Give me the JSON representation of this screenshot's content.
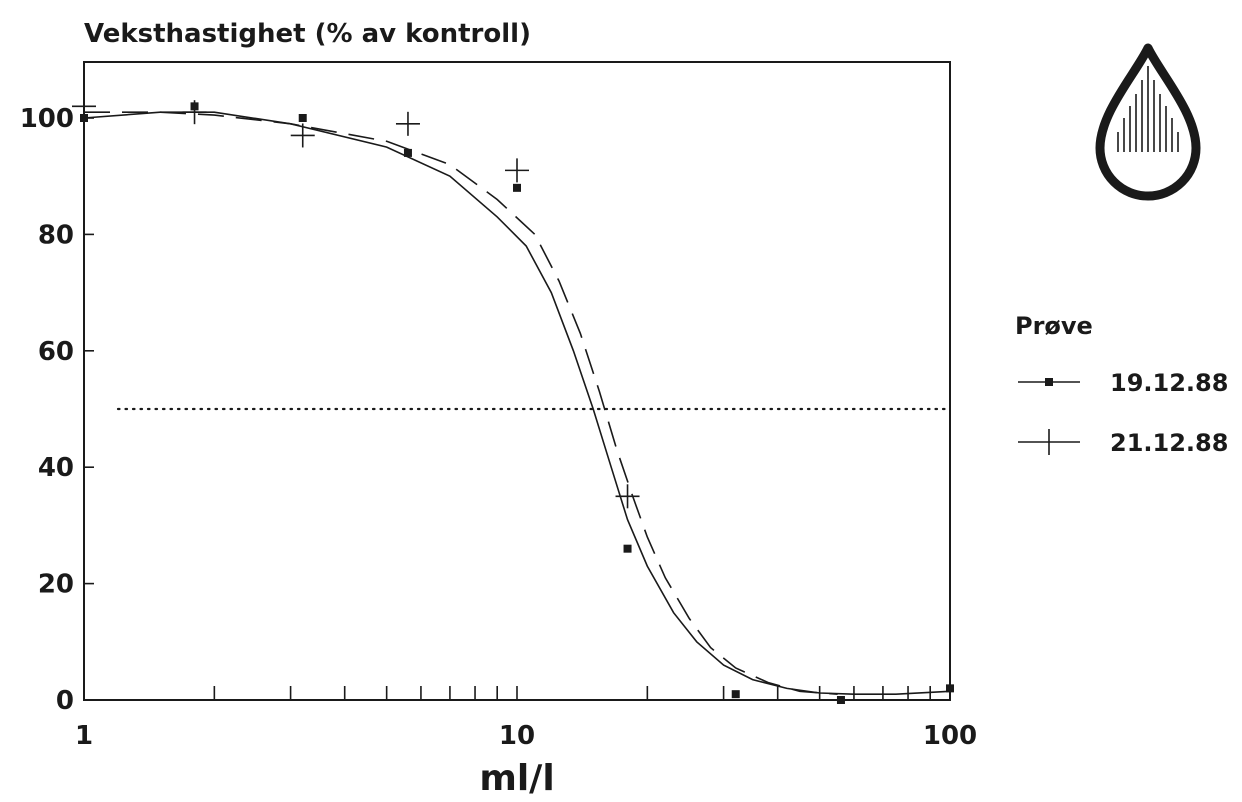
{
  "chart_data": {
    "type": "line",
    "title": "Veksthastighet (% av kontroll)",
    "xlabel": "ml/l",
    "ylabel": "",
    "x_scale": "log",
    "xlim": [
      1,
      100
    ],
    "ylim": [
      0,
      110
    ],
    "x_ticks": [
      1,
      10,
      100
    ],
    "x_tick_labels": [
      "1",
      "10",
      "100"
    ],
    "y_ticks": [
      0,
      20,
      40,
      60,
      80,
      100
    ],
    "y_tick_labels": [
      "0",
      "20",
      "40",
      "60",
      "80",
      "100"
    ],
    "grid": false,
    "reference_line": {
      "y": 50,
      "style": "dotted"
    },
    "legend": {
      "title": "Prøve",
      "position": "right"
    },
    "series": [
      {
        "name": "19.12.88",
        "marker": "square",
        "line": "solid",
        "points": [
          [
            1,
            100
          ],
          [
            1.8,
            102
          ],
          [
            3.2,
            100
          ],
          [
            5.6,
            94
          ],
          [
            10,
            88
          ],
          [
            18,
            26
          ],
          [
            32,
            1
          ],
          [
            56,
            0
          ],
          [
            100,
            2
          ]
        ],
        "curve": [
          [
            1,
            100
          ],
          [
            1.5,
            101
          ],
          [
            2,
            101
          ],
          [
            3,
            99
          ],
          [
            5,
            95
          ],
          [
            7,
            90
          ],
          [
            9,
            83
          ],
          [
            10.5,
            78
          ],
          [
            12,
            70
          ],
          [
            13.5,
            60
          ],
          [
            15,
            50
          ],
          [
            16.5,
            40
          ],
          [
            18,
            31
          ],
          [
            20,
            23
          ],
          [
            23,
            15
          ],
          [
            26,
            10
          ],
          [
            30,
            6
          ],
          [
            35,
            3.5
          ],
          [
            42,
            2
          ],
          [
            50,
            1.2
          ],
          [
            60,
            1
          ],
          [
            75,
            1
          ],
          [
            100,
            1.5
          ]
        ]
      },
      {
        "name": "21.12.88",
        "marker": "plus",
        "line": "dashed",
        "points": [
          [
            1,
            102
          ],
          [
            1.8,
            101
          ],
          [
            3.2,
            97
          ],
          [
            5.6,
            99
          ],
          [
            10,
            91
          ],
          [
            18,
            35
          ]
        ],
        "curve": [
          [
            1,
            101
          ],
          [
            1.5,
            101
          ],
          [
            2,
            100.5
          ],
          [
            3,
            99
          ],
          [
            5,
            96
          ],
          [
            7,
            92
          ],
          [
            9,
            86
          ],
          [
            11,
            80
          ],
          [
            12.5,
            72
          ],
          [
            14,
            63
          ],
          [
            15.5,
            53
          ],
          [
            17,
            43
          ],
          [
            18.5,
            35
          ],
          [
            20,
            28
          ],
          [
            22,
            21
          ],
          [
            25,
            14
          ],
          [
            28,
            9
          ],
          [
            32,
            5.5
          ],
          [
            38,
            3
          ],
          [
            45,
            1.5
          ],
          [
            55,
            1
          ]
        ]
      }
    ]
  },
  "colors": {
    "ink": "#1a1a1a",
    "background": "#ffffff"
  },
  "logo": {
    "icon": "water-drop-icon"
  }
}
